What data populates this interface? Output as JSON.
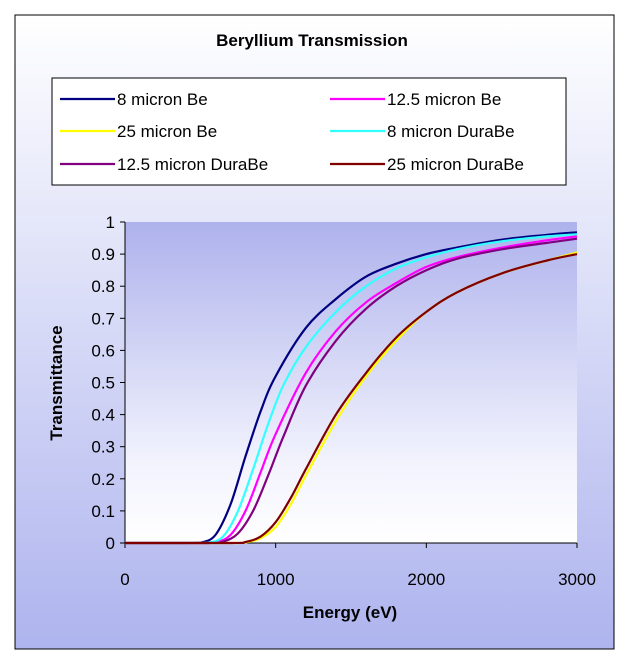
{
  "chart_data": {
    "type": "line",
    "title": "Beryllium Transmission",
    "xlabel": "Energy (eV)",
    "ylabel": "Transmittance",
    "xlim": [
      0,
      3000
    ],
    "ylim": [
      0,
      1
    ],
    "xticks": [
      0,
      1000,
      2000,
      3000
    ],
    "yticks": [
      0,
      0.1,
      0.2,
      0.3,
      0.4,
      0.5,
      0.6,
      0.7,
      0.8,
      0.9,
      1
    ],
    "legend_placement": "top",
    "grid": false,
    "series": [
      {
        "name": "8 micron Be",
        "color": "#000080",
        "x": [
          0,
          400,
          500,
          600,
          700,
          800,
          900,
          1000,
          1200,
          1400,
          1600,
          1800,
          2000,
          2200,
          2500,
          2800,
          3000
        ],
        "y": [
          0,
          0,
          0.001,
          0.025,
          0.12,
          0.27,
          0.41,
          0.52,
          0.67,
          0.76,
          0.83,
          0.87,
          0.9,
          0.92,
          0.945,
          0.96,
          0.968
        ]
      },
      {
        "name": "12.5 micron Be",
        "color": "#ff00ff",
        "x": [
          0,
          500,
          600,
          700,
          800,
          900,
          1000,
          1200,
          1400,
          1600,
          1800,
          2000,
          2200,
          2500,
          2800,
          3000
        ],
        "y": [
          0,
          0,
          0.002,
          0.025,
          0.1,
          0.22,
          0.34,
          0.53,
          0.66,
          0.75,
          0.81,
          0.86,
          0.89,
          0.92,
          0.943,
          0.955
        ]
      },
      {
        "name": "25 micron Be",
        "color": "#ffff00",
        "x": [
          0,
          700,
          800,
          900,
          1000,
          1100,
          1200,
          1400,
          1600,
          1800,
          2000,
          2200,
          2500,
          2800,
          3000
        ],
        "y": [
          0,
          0,
          0.002,
          0.015,
          0.05,
          0.12,
          0.21,
          0.38,
          0.52,
          0.63,
          0.72,
          0.78,
          0.84,
          0.88,
          0.905
        ]
      },
      {
        "name": "8 micron DuraBe",
        "color": "#33ffff",
        "x": [
          0,
          450,
          550,
          650,
          750,
          850,
          950,
          1050,
          1200,
          1400,
          1600,
          1800,
          2000,
          2200,
          2500,
          2800,
          3000
        ],
        "y": [
          0,
          0,
          0.001,
          0.02,
          0.1,
          0.23,
          0.37,
          0.49,
          0.61,
          0.72,
          0.8,
          0.855,
          0.89,
          0.915,
          0.94,
          0.955,
          0.962
        ]
      },
      {
        "name": "12.5 micron DuraBe",
        "color": "#800080",
        "x": [
          0,
          550,
          650,
          750,
          850,
          950,
          1050,
          1200,
          1400,
          1600,
          1800,
          2000,
          2200,
          2500,
          2800,
          3000
        ],
        "y": [
          0,
          0,
          0.004,
          0.03,
          0.1,
          0.21,
          0.33,
          0.49,
          0.63,
          0.73,
          0.8,
          0.85,
          0.885,
          0.915,
          0.935,
          0.948
        ]
      },
      {
        "name": "25 micron DuraBe",
        "color": "#800000",
        "x": [
          0,
          700,
          800,
          900,
          1000,
          1100,
          1200,
          1400,
          1600,
          1800,
          2000,
          2200,
          2500,
          2800,
          3000
        ],
        "y": [
          0,
          0,
          0.003,
          0.02,
          0.065,
          0.14,
          0.23,
          0.4,
          0.53,
          0.64,
          0.72,
          0.78,
          0.84,
          0.88,
          0.9
        ]
      }
    ]
  }
}
